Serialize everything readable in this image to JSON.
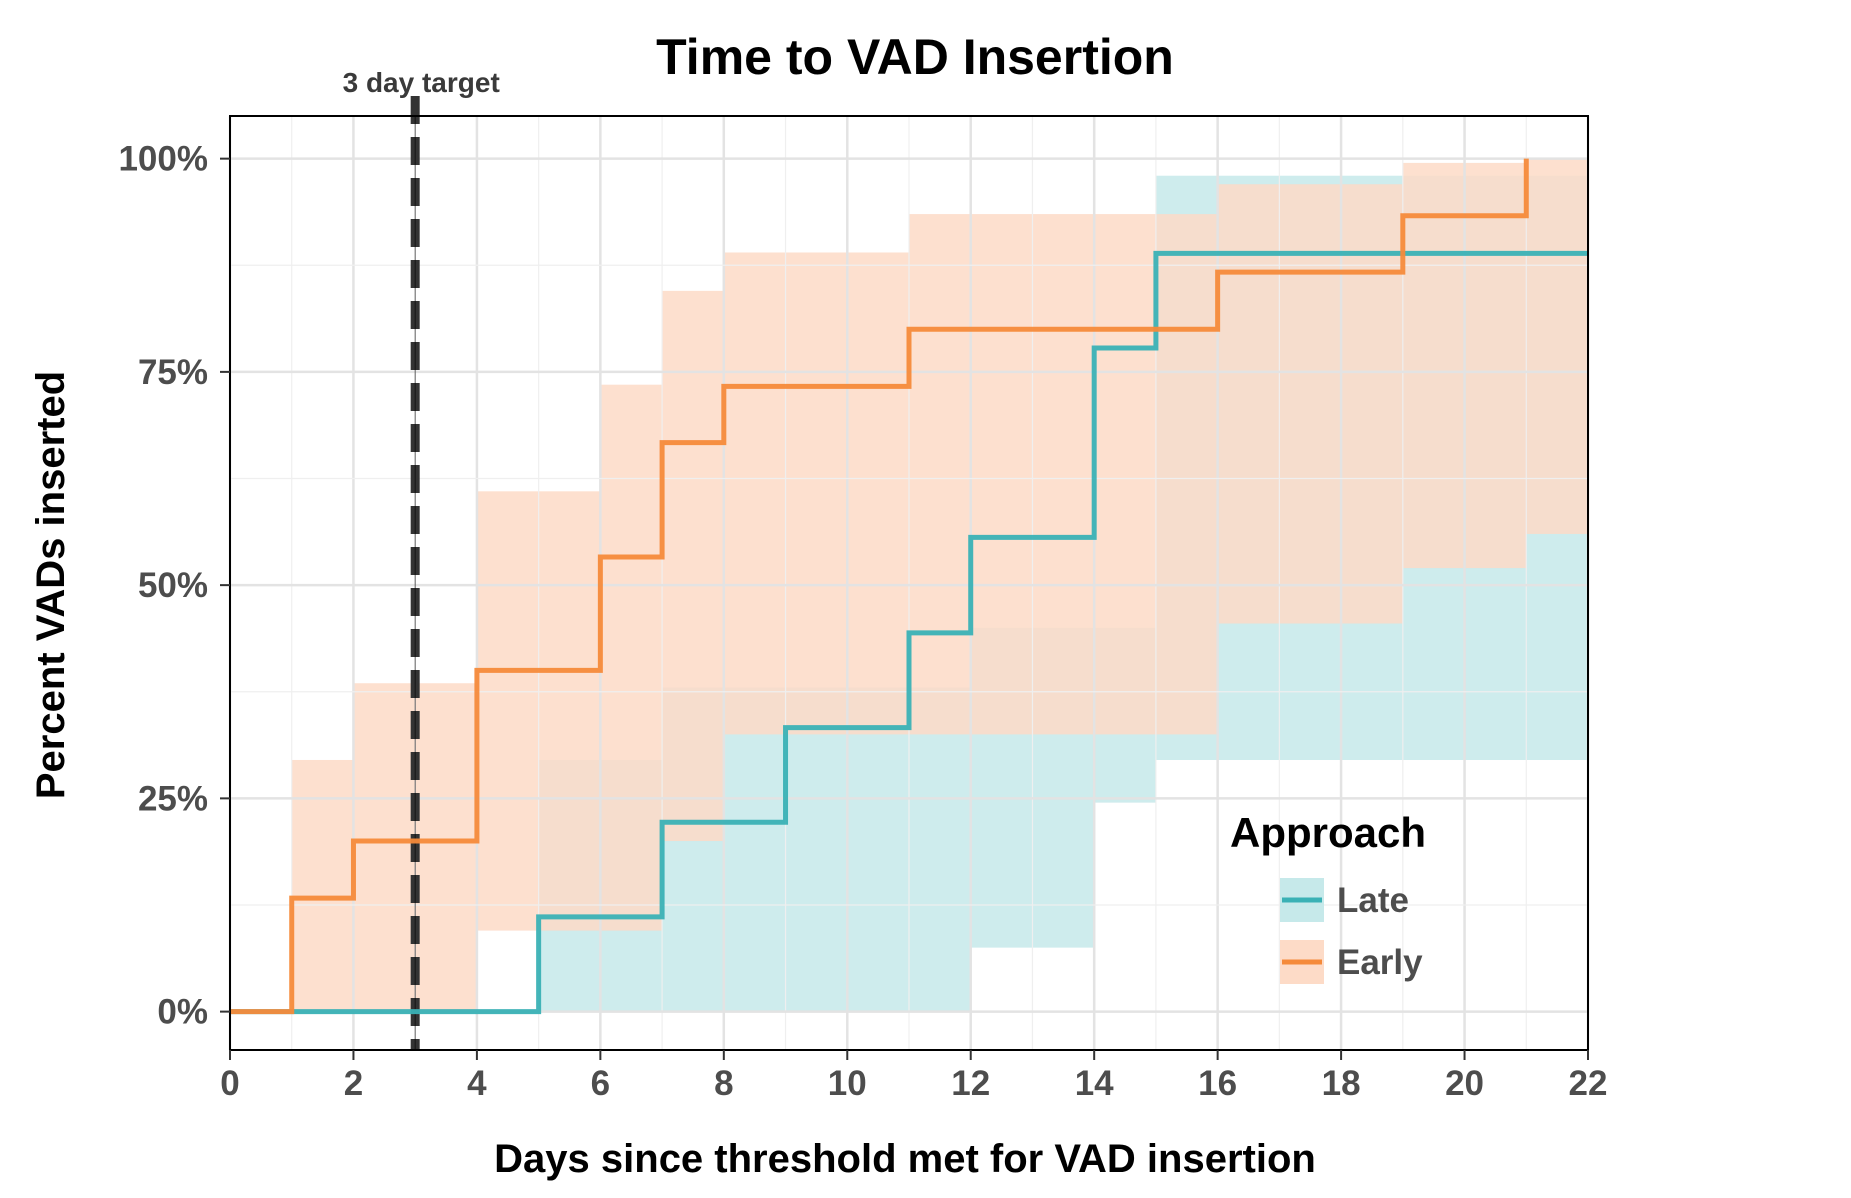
{
  "chart_data": {
    "type": "line",
    "step": true,
    "title": "Time to VAD Insertion",
    "xlabel": "Days since threshold met for VAD insertion",
    "ylabel": "Percent VADs inserted",
    "xlim": [
      0,
      22
    ],
    "ylim": [
      -0.045,
      1.05
    ],
    "x_ticks": [
      0,
      2,
      4,
      6,
      8,
      10,
      12,
      14,
      16,
      18,
      20,
      22
    ],
    "x_tick_labels": [
      "0",
      "2",
      "4",
      "6",
      "8",
      "10",
      "12",
      "14",
      "16",
      "18",
      "20",
      "22"
    ],
    "y_ticks": [
      0,
      0.25,
      0.5,
      0.75,
      1.0
    ],
    "y_tick_labels": [
      "0%",
      "25%",
      "50%",
      "75%",
      "100%"
    ],
    "grid": true,
    "legend": {
      "title": "Approach",
      "placement": "bottom-right"
    },
    "annotation": {
      "label": "3 day target",
      "x": 3,
      "style": "dashed vertical line"
    },
    "series": [
      {
        "name": "Late",
        "color": "#3AB1B5",
        "band_color": "#C6E9EA",
        "x": [
          0,
          5,
          7,
          9,
          11,
          12,
          14,
          15,
          22
        ],
        "y": [
          0,
          0.111,
          0.222,
          0.333,
          0.444,
          0.556,
          0.778,
          0.889,
          0.889
        ],
        "lower": [
          0,
          0,
          0,
          0,
          0,
          0.075,
          0.245,
          0.295,
          0.295
        ],
        "upper": [
          0,
          0.295,
          0.38,
          0.38,
          0.38,
          0.45,
          0.45,
          0.98,
          0.98
        ]
      },
      {
        "name": "Early",
        "color": "#F58A3A",
        "band_color": "#FDDBC7",
        "x": [
          0,
          1,
          2,
          4,
          6,
          7,
          8,
          11,
          15,
          16,
          19,
          21
        ],
        "y": [
          0,
          0.133,
          0.2,
          0.4,
          0.533,
          0.667,
          0.733,
          0.8,
          0.8,
          0.867,
          0.933,
          1.0
        ],
        "lower": [
          0,
          0,
          0,
          0.095,
          0.095,
          0.2,
          0.325,
          0.325,
          0.325,
          0.455,
          0.52,
          0.56
        ],
        "upper": [
          0,
          0.295,
          0.385,
          0.61,
          0.735,
          0.845,
          0.89,
          0.935,
          0.935,
          0.97,
          0.995,
          1.0
        ]
      }
    ]
  }
}
